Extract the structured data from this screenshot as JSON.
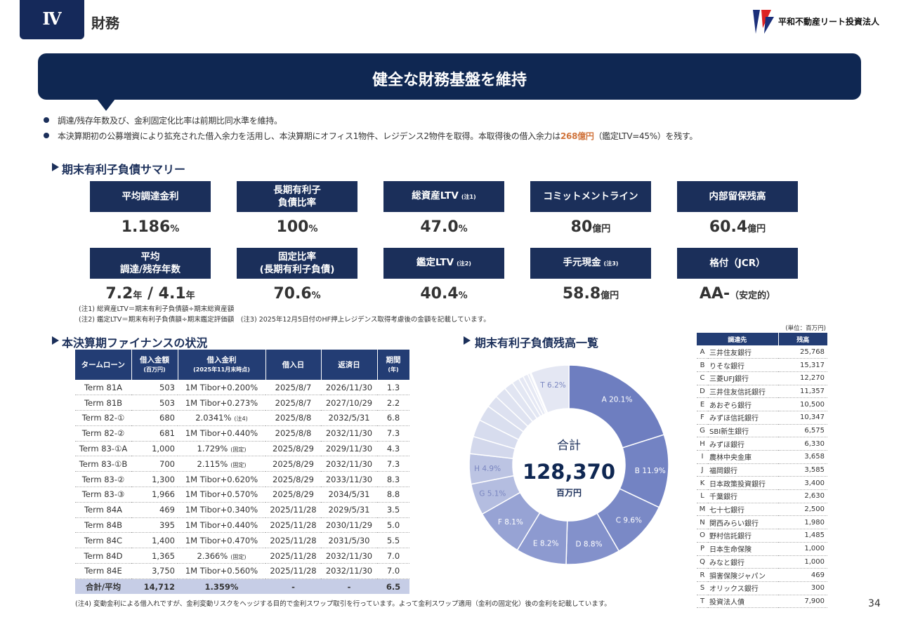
{
  "header": {
    "section_number": "Ⅳ",
    "section_title": "財務",
    "company": "平和不動産リート投資法人"
  },
  "banner": "健全な財務基盤を維持",
  "bullets": [
    [
      "調達/残存年数及び、金利固定化比率は前期比同水準を維持。"
    ],
    [
      "本決算期初の公募増資により拡充された借入余力を活用し、本決算期にオフィス1物件、レジデンス2物件を取得。本取得後の借入余力は",
      "268億円",
      "（鑑定LTV=45%）を残す。"
    ]
  ],
  "summary": {
    "heading": "期末有利子負債サマリー",
    "items": [
      {
        "label": [
          "平均調達金利"
        ],
        "value": [
          {
            "number": "1.186",
            "unit": "%"
          }
        ]
      },
      {
        "label": [
          "長期有利子",
          "負債比率"
        ],
        "value": [
          {
            "number": "100",
            "unit": "%"
          }
        ]
      },
      {
        "label": [
          "総資産LTV"
        ],
        "note": "(注1)",
        "value": [
          {
            "number": "47.0",
            "unit": "%"
          }
        ]
      },
      {
        "label": [
          "コミットメントライン"
        ],
        "value": [
          {
            "number": "80",
            "unit": "億円"
          }
        ]
      },
      {
        "label": [
          "内部留保残高"
        ],
        "value": [
          {
            "number": "60.4",
            "unit": "億円"
          }
        ]
      },
      {
        "label": [
          "平均",
          "調達/残存年数"
        ],
        "value": [
          {
            "number": "7.2",
            "unit": "年"
          },
          {
            "number": " / 4.1",
            "unit": "年"
          }
        ]
      },
      {
        "label": [
          "固定比率",
          "(長期有利子負債)"
        ],
        "value": [
          {
            "number": "70.6",
            "unit": "%"
          }
        ]
      },
      {
        "label": [
          "鑑定LTV"
        ],
        "note": "(注2)",
        "value": [
          {
            "number": "40.4",
            "unit": "%"
          }
        ]
      },
      {
        "label": [
          "手元現金"
        ],
        "note": "(注3)",
        "value": [
          {
            "number": "58.8",
            "unit": "億円"
          }
        ]
      },
      {
        "label": [
          "格付（JCR）"
        ],
        "value": [
          {
            "number": "AA-",
            "unit": "（安定的）"
          }
        ]
      }
    ],
    "notes": [
      "(注1) 総資産LTV＝期末有利子負債額÷期末総資産額",
      "(注2) 鑑定LTV＝期末有利子負債額÷期末鑑定評価額　(注3) 2025年12月5日付のHF押上レジデンス取得考慮後の金額を記載しています。"
    ]
  },
  "finance": {
    "heading": "本決算期ファイナンスの状況",
    "columns": [
      [
        "タームローン"
      ],
      [
        "借入金額",
        "(百万円)"
      ],
      [
        "借入金利",
        "(2025年11月末時点)"
      ],
      [
        "借入日"
      ],
      [
        "返済日"
      ],
      [
        "期間",
        "(年)"
      ]
    ],
    "rows": [
      {
        "cells": [
          "Term 81A",
          "503",
          "1M Tibor+0.200%",
          "2025/8/7",
          "2026/11/30",
          "1.3"
        ]
      },
      {
        "cells": [
          "Term 81B",
          "503",
          "1M Tibor+0.273%",
          "2025/8/7",
          "2027/10/29",
          "2.2"
        ]
      },
      {
        "cells": [
          "Term 82-①",
          "680",
          "2.0341%",
          "2025/8/8",
          "2032/5/31",
          "6.8"
        ],
        "rate_note": "(注4)"
      },
      {
        "cells": [
          "Term 82-②",
          "681",
          "1M Tibor+0.440%",
          "2025/8/8",
          "2032/11/30",
          "7.3"
        ]
      },
      {
        "cells": [
          "Term 83-①A",
          "1,000",
          "1.729%",
          "2025/8/29",
          "2029/11/30",
          "4.3"
        ],
        "rate_note": "(固定)"
      },
      {
        "cells": [
          "Term 83-①B",
          "700",
          "2.115%",
          "2025/8/29",
          "2032/11/30",
          "7.3"
        ],
        "rate_note": "(固定)"
      },
      {
        "cells": [
          "Term 83-②",
          "1,300",
          "1M Tibor+0.620%",
          "2025/8/29",
          "2033/11/30",
          "8.3"
        ]
      },
      {
        "cells": [
          "Term 83-③",
          "1,966",
          "1M Tibor+0.570%",
          "2025/8/29",
          "2034/5/31",
          "8.8"
        ]
      },
      {
        "cells": [
          "Term 84A",
          "469",
          "1M Tibor+0.340%",
          "2025/11/28",
          "2029/5/31",
          "3.5"
        ]
      },
      {
        "cells": [
          "Term 84B",
          "395",
          "1M Tibor+0.440%",
          "2025/11/28",
          "2030/11/29",
          "5.0"
        ]
      },
      {
        "cells": [
          "Term 84C",
          "1,400",
          "1M Tibor+0.470%",
          "2025/11/28",
          "2031/5/30",
          "5.5"
        ]
      },
      {
        "cells": [
          "Term 84D",
          "1,365",
          "2.366%",
          "2025/11/28",
          "2032/11/30",
          "7.0"
        ],
        "rate_note": "(固定)"
      },
      {
        "cells": [
          "Term 84E",
          "3,750",
          "1M Tibor+0.560%",
          "2025/11/28",
          "2032/11/30",
          "7.0"
        ]
      }
    ],
    "total": [
      "合計/平均",
      "14,712",
      "1.359%",
      "-",
      "-",
      "6.5"
    ],
    "footnote": "(注4) 変動金利による借入れですが、金利変動リスクをヘッジする目的で金利スワップ取引を行っています。よって金利スワップ適用（金利の固定化）後の金利を記載しています。"
  },
  "chart_data": {
    "type": "pie",
    "title": "期末有利子負債残高一覧",
    "center_label": "合計",
    "total": "128,370",
    "total_unit": "百万円",
    "categories": [
      "A",
      "B",
      "C",
      "D",
      "E",
      "F",
      "G",
      "H",
      "I",
      "J",
      "K",
      "L",
      "M",
      "N",
      "O",
      "P",
      "Q",
      "R",
      "S",
      "T"
    ],
    "values": [
      20.1,
      11.9,
      9.6,
      8.8,
      8.2,
      8.1,
      5.1,
      4.9,
      2.8,
      2.8,
      2.6,
      2.0,
      1.9,
      1.5,
      1.2,
      0.8,
      0.8,
      0.4,
      0.2,
      6.2
    ],
    "value_labels": [
      "A 20.1%",
      "B 11.9%",
      "C 9.6%",
      "D 8.8%",
      "E 8.2%",
      "F 8.1%",
      "G 5.1%",
      "H 4.9%",
      null,
      null,
      null,
      null,
      null,
      null,
      null,
      null,
      null,
      null,
      null,
      "T 6.2%"
    ],
    "colors": [
      "#6e7ec0",
      "#7383c3",
      "#7a89c6",
      "#8391cb",
      "#8d9ad0",
      "#97a3d4",
      "#b4bde0",
      "#bcc4e3",
      "#d3d8ec",
      "#d7dcee",
      "#dadfef",
      "#dde1f0",
      "#dfe3f1",
      "#e1e5f2",
      "#e3e7f3",
      "#e5e8f4",
      "#e6e9f4",
      "#e8ebf5",
      "#e9ecf5",
      "#e4e7f3"
    ]
  },
  "lenders": {
    "unit": "(単位：百万円)",
    "columns": [
      "調達先",
      "残高"
    ],
    "names": [
      "三井住友銀行",
      "りそな銀行",
      "三菱UFJ銀行",
      "三井住友信託銀行",
      "あおぞら銀行",
      "みずほ信託銀行",
      "SBI新生銀行",
      "みずほ銀行",
      "農林中央金庫",
      "福岡銀行",
      "日本政策投資銀行",
      "千葉銀行",
      "七十七銀行",
      "関西みらい銀行",
      "野村信託銀行",
      "日本生命保険",
      "みなと銀行",
      "損害保険ジャパン",
      "オリックス銀行",
      "投資法人債"
    ],
    "amounts": [
      "25,768",
      "15,317",
      "12,270",
      "11,357",
      "10,500",
      "10,347",
      "6,575",
      "6,330",
      "3,658",
      "3,585",
      "3,400",
      "2,630",
      "2,500",
      "1,980",
      "1,485",
      "1,000",
      "1,000",
      "469",
      "300",
      "7,900"
    ]
  },
  "page_number": "34"
}
